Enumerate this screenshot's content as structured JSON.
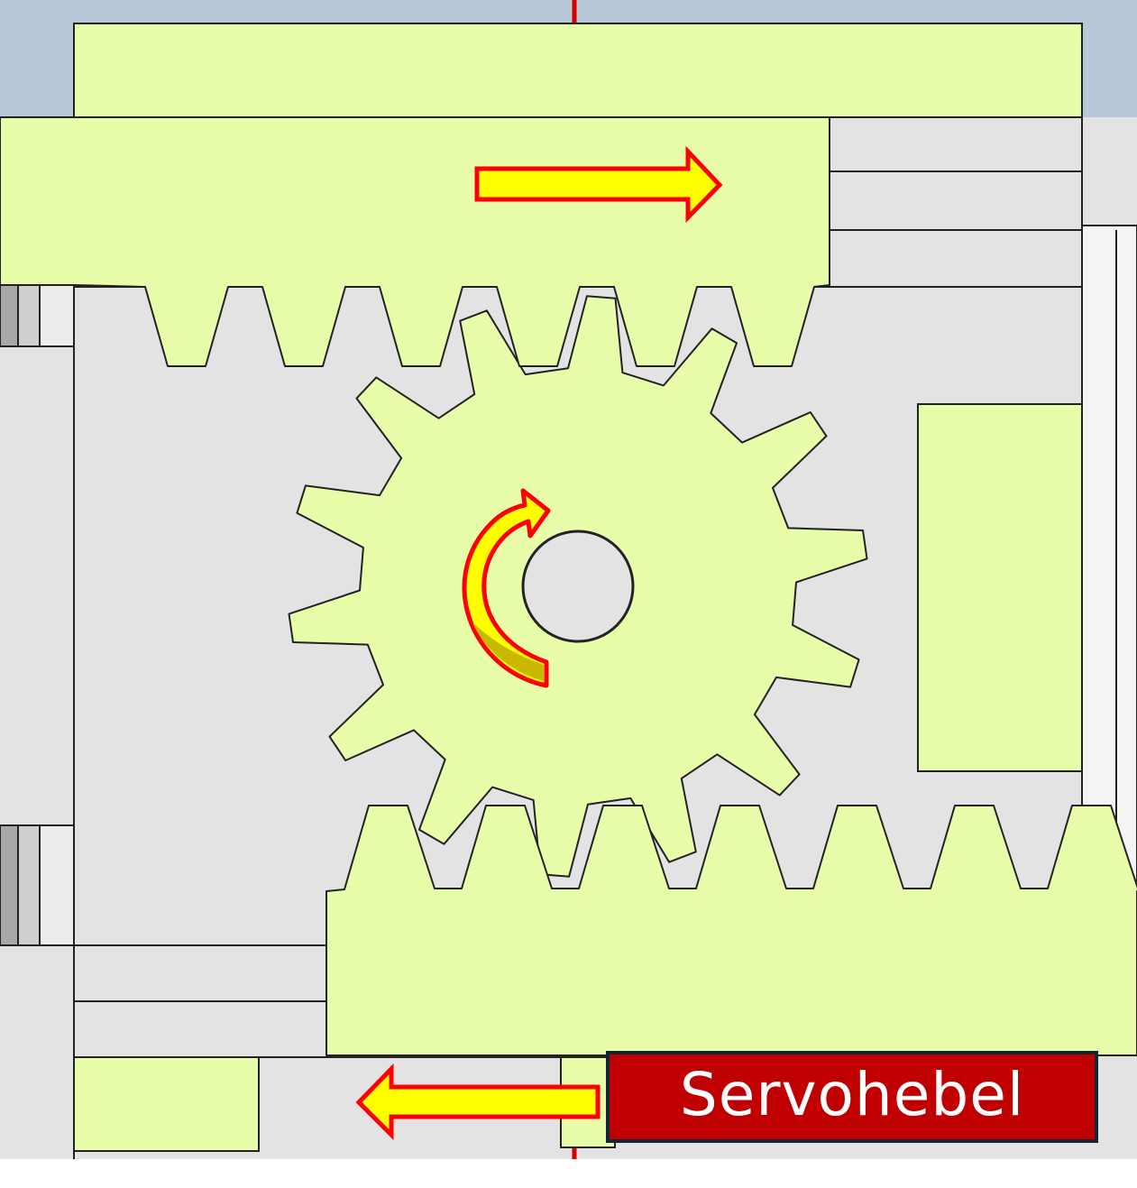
{
  "label": {
    "text": "Servohebel"
  },
  "colors": {
    "part_fill": "#e8fdaa",
    "housing_fill": "#e3e3e3",
    "sky_fill": "#b8c8d8",
    "outline": "#222222",
    "axis_line": "#d40000",
    "arrow_fill": "#ffff00",
    "arrow_stroke": "#ff0000",
    "label_bg": "#c00000",
    "label_border": "#12263a",
    "label_text": "#ffffff"
  },
  "gear": {
    "teeth": 14,
    "direction": "clockwise"
  },
  "icons": {
    "upper_rack_motion": "arrow-right-icon",
    "lower_rack_motion": "arrow-left-icon",
    "gear_rotation": "curved-arrow-clockwise-icon"
  }
}
